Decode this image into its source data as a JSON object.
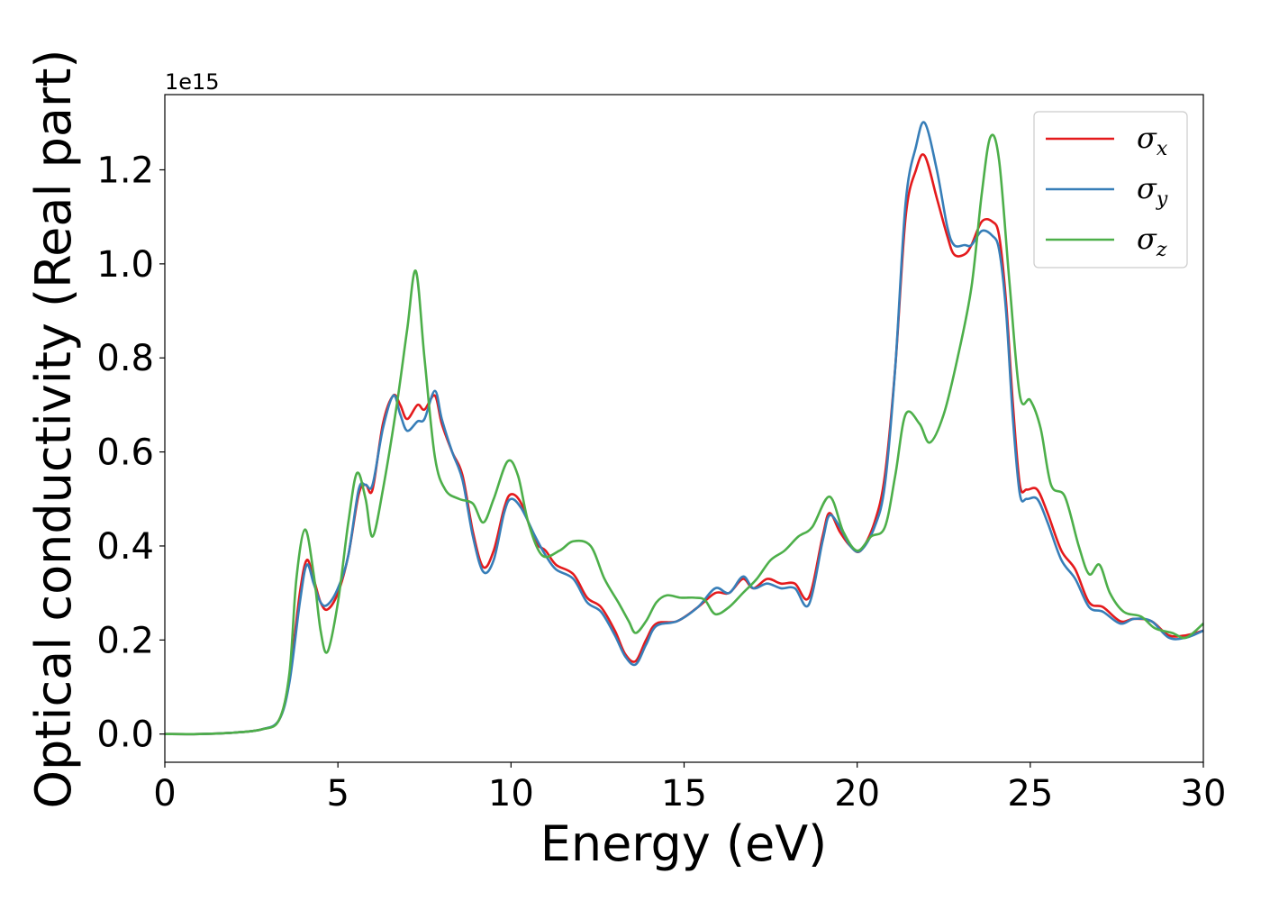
{
  "chart_data": {
    "type": "line",
    "title": "",
    "xlabel": "Energy (eV)",
    "ylabel": "Optical conductivity (Real part)",
    "offset_text": "1e15",
    "xlim": [
      0,
      30
    ],
    "ylim": [
      -0.06,
      1.36
    ],
    "xticks": [
      0,
      5,
      10,
      15,
      20,
      25,
      30
    ],
    "xtick_labels": [
      "0",
      "5",
      "10",
      "15",
      "20",
      "25",
      "30"
    ],
    "yticks": [
      0.0,
      0.2,
      0.4,
      0.6,
      0.8,
      1.0,
      1.2
    ],
    "ytick_labels": [
      "0.0",
      "0.2",
      "0.4",
      "0.6",
      "0.8",
      "1.0",
      "1.2"
    ],
    "grid": false,
    "legend_position": "top-right",
    "series": [
      {
        "name": "σx",
        "legend_symbol": "σ",
        "legend_subscript": "x",
        "color": "#e41a1c",
        "points": [
          [
            0,
            0
          ],
          [
            1,
            0
          ],
          [
            2,
            0.003
          ],
          [
            2.8,
            0.01
          ],
          [
            3.3,
            0.03
          ],
          [
            3.6,
            0.12
          ],
          [
            3.9,
            0.3
          ],
          [
            4.1,
            0.37
          ],
          [
            4.3,
            0.33
          ],
          [
            4.5,
            0.28
          ],
          [
            4.7,
            0.265
          ],
          [
            5.0,
            0.3
          ],
          [
            5.3,
            0.38
          ],
          [
            5.6,
            0.51
          ],
          [
            5.8,
            0.53
          ],
          [
            6.0,
            0.52
          ],
          [
            6.3,
            0.66
          ],
          [
            6.6,
            0.72
          ],
          [
            6.8,
            0.7
          ],
          [
            7.0,
            0.67
          ],
          [
            7.3,
            0.7
          ],
          [
            7.5,
            0.69
          ],
          [
            7.8,
            0.72
          ],
          [
            8.0,
            0.66
          ],
          [
            8.3,
            0.6
          ],
          [
            8.6,
            0.55
          ],
          [
            8.9,
            0.43
          ],
          [
            9.2,
            0.355
          ],
          [
            9.5,
            0.39
          ],
          [
            9.8,
            0.48
          ],
          [
            10.0,
            0.51
          ],
          [
            10.3,
            0.49
          ],
          [
            10.7,
            0.41
          ],
          [
            11.0,
            0.39
          ],
          [
            11.3,
            0.36
          ],
          [
            11.8,
            0.34
          ],
          [
            12.2,
            0.29
          ],
          [
            12.6,
            0.27
          ],
          [
            13.0,
            0.22
          ],
          [
            13.3,
            0.17
          ],
          [
            13.6,
            0.155
          ],
          [
            13.9,
            0.2
          ],
          [
            14.2,
            0.235
          ],
          [
            14.8,
            0.24
          ],
          [
            15.4,
            0.27
          ],
          [
            15.9,
            0.3
          ],
          [
            16.3,
            0.3
          ],
          [
            16.7,
            0.33
          ],
          [
            17.0,
            0.31
          ],
          [
            17.4,
            0.33
          ],
          [
            17.8,
            0.32
          ],
          [
            18.2,
            0.32
          ],
          [
            18.6,
            0.29
          ],
          [
            19.0,
            0.42
          ],
          [
            19.2,
            0.47
          ],
          [
            19.5,
            0.43
          ],
          [
            19.8,
            0.4
          ],
          [
            20.1,
            0.39
          ],
          [
            20.5,
            0.45
          ],
          [
            20.8,
            0.55
          ],
          [
            21.1,
            0.78
          ],
          [
            21.4,
            1.1
          ],
          [
            21.7,
            1.2
          ],
          [
            21.95,
            1.23
          ],
          [
            22.3,
            1.14
          ],
          [
            22.6,
            1.06
          ],
          [
            22.8,
            1.02
          ],
          [
            23.1,
            1.02
          ],
          [
            23.3,
            1.04
          ],
          [
            23.6,
            1.09
          ],
          [
            23.9,
            1.09
          ],
          [
            24.1,
            1.06
          ],
          [
            24.3,
            0.92
          ],
          [
            24.5,
            0.7
          ],
          [
            24.7,
            0.53
          ],
          [
            24.9,
            0.52
          ],
          [
            25.2,
            0.52
          ],
          [
            25.5,
            0.47
          ],
          [
            25.9,
            0.39
          ],
          [
            26.3,
            0.35
          ],
          [
            26.7,
            0.28
          ],
          [
            27.1,
            0.27
          ],
          [
            27.6,
            0.24
          ],
          [
            28.0,
            0.245
          ],
          [
            28.5,
            0.24
          ],
          [
            29.0,
            0.21
          ],
          [
            29.5,
            0.21
          ],
          [
            30.0,
            0.22
          ]
        ]
      },
      {
        "name": "σy",
        "legend_symbol": "σ",
        "legend_subscript": "y",
        "color": "#377eb8",
        "points": [
          [
            0,
            0
          ],
          [
            1,
            0
          ],
          [
            2,
            0.003
          ],
          [
            2.8,
            0.01
          ],
          [
            3.3,
            0.03
          ],
          [
            3.6,
            0.11
          ],
          [
            3.9,
            0.28
          ],
          [
            4.1,
            0.36
          ],
          [
            4.3,
            0.32
          ],
          [
            4.5,
            0.28
          ],
          [
            4.7,
            0.275
          ],
          [
            5.0,
            0.31
          ],
          [
            5.3,
            0.38
          ],
          [
            5.6,
            0.52
          ],
          [
            5.8,
            0.53
          ],
          [
            6.0,
            0.53
          ],
          [
            6.3,
            0.65
          ],
          [
            6.6,
            0.72
          ],
          [
            6.8,
            0.68
          ],
          [
            7.0,
            0.645
          ],
          [
            7.3,
            0.665
          ],
          [
            7.5,
            0.67
          ],
          [
            7.8,
            0.73
          ],
          [
            8.0,
            0.67
          ],
          [
            8.3,
            0.6
          ],
          [
            8.6,
            0.54
          ],
          [
            8.9,
            0.42
          ],
          [
            9.2,
            0.345
          ],
          [
            9.5,
            0.37
          ],
          [
            9.8,
            0.47
          ],
          [
            10.0,
            0.5
          ],
          [
            10.3,
            0.48
          ],
          [
            10.7,
            0.42
          ],
          [
            11.0,
            0.38
          ],
          [
            11.3,
            0.35
          ],
          [
            11.8,
            0.33
          ],
          [
            12.2,
            0.28
          ],
          [
            12.6,
            0.26
          ],
          [
            13.0,
            0.21
          ],
          [
            13.3,
            0.165
          ],
          [
            13.6,
            0.148
          ],
          [
            13.9,
            0.19
          ],
          [
            14.2,
            0.23
          ],
          [
            14.8,
            0.24
          ],
          [
            15.4,
            0.27
          ],
          [
            15.9,
            0.31
          ],
          [
            16.3,
            0.3
          ],
          [
            16.7,
            0.335
          ],
          [
            17.0,
            0.31
          ],
          [
            17.4,
            0.32
          ],
          [
            17.8,
            0.31
          ],
          [
            18.2,
            0.31
          ],
          [
            18.6,
            0.275
          ],
          [
            19.0,
            0.41
          ],
          [
            19.2,
            0.465
          ],
          [
            19.5,
            0.44
          ],
          [
            19.8,
            0.4
          ],
          [
            20.1,
            0.39
          ],
          [
            20.5,
            0.44
          ],
          [
            20.8,
            0.53
          ],
          [
            21.1,
            0.78
          ],
          [
            21.4,
            1.13
          ],
          [
            21.7,
            1.25
          ],
          [
            21.95,
            1.3
          ],
          [
            22.3,
            1.2
          ],
          [
            22.6,
            1.08
          ],
          [
            22.8,
            1.04
          ],
          [
            23.1,
            1.04
          ],
          [
            23.3,
            1.04
          ],
          [
            23.6,
            1.07
          ],
          [
            23.9,
            1.06
          ],
          [
            24.1,
            1.03
          ],
          [
            24.3,
            0.9
          ],
          [
            24.5,
            0.67
          ],
          [
            24.7,
            0.51
          ],
          [
            24.9,
            0.5
          ],
          [
            25.2,
            0.5
          ],
          [
            25.5,
            0.45
          ],
          [
            25.9,
            0.37
          ],
          [
            26.3,
            0.33
          ],
          [
            26.7,
            0.27
          ],
          [
            27.1,
            0.26
          ],
          [
            27.6,
            0.235
          ],
          [
            28.0,
            0.245
          ],
          [
            28.5,
            0.24
          ],
          [
            29.0,
            0.205
          ],
          [
            29.5,
            0.205
          ],
          [
            30.0,
            0.22
          ]
        ]
      },
      {
        "name": "σz",
        "legend_symbol": "σ",
        "legend_subscript": "z",
        "color": "#4daf4a",
        "points": [
          [
            0,
            0
          ],
          [
            1,
            0
          ],
          [
            2,
            0.003
          ],
          [
            2.8,
            0.01
          ],
          [
            3.3,
            0.03
          ],
          [
            3.6,
            0.13
          ],
          [
            3.8,
            0.33
          ],
          [
            4.05,
            0.435
          ],
          [
            4.3,
            0.34
          ],
          [
            4.5,
            0.22
          ],
          [
            4.7,
            0.175
          ],
          [
            5.0,
            0.28
          ],
          [
            5.3,
            0.45
          ],
          [
            5.55,
            0.555
          ],
          [
            5.8,
            0.5
          ],
          [
            6.0,
            0.42
          ],
          [
            6.3,
            0.52
          ],
          [
            6.7,
            0.7
          ],
          [
            7.0,
            0.86
          ],
          [
            7.25,
            0.985
          ],
          [
            7.5,
            0.8
          ],
          [
            7.8,
            0.59
          ],
          [
            8.1,
            0.52
          ],
          [
            8.5,
            0.5
          ],
          [
            8.9,
            0.49
          ],
          [
            9.2,
            0.45
          ],
          [
            9.5,
            0.5
          ],
          [
            9.9,
            0.58
          ],
          [
            10.2,
            0.55
          ],
          [
            10.5,
            0.45
          ],
          [
            10.9,
            0.38
          ],
          [
            11.4,
            0.39
          ],
          [
            11.8,
            0.41
          ],
          [
            12.3,
            0.4
          ],
          [
            12.7,
            0.33
          ],
          [
            13.1,
            0.28
          ],
          [
            13.4,
            0.24
          ],
          [
            13.6,
            0.215
          ],
          [
            13.9,
            0.24
          ],
          [
            14.2,
            0.28
          ],
          [
            14.5,
            0.295
          ],
          [
            14.9,
            0.29
          ],
          [
            15.3,
            0.29
          ],
          [
            15.6,
            0.285
          ],
          [
            15.9,
            0.255
          ],
          [
            16.3,
            0.27
          ],
          [
            16.7,
            0.3
          ],
          [
            17.1,
            0.33
          ],
          [
            17.5,
            0.37
          ],
          [
            17.9,
            0.39
          ],
          [
            18.3,
            0.42
          ],
          [
            18.7,
            0.44
          ],
          [
            19.2,
            0.505
          ],
          [
            19.6,
            0.43
          ],
          [
            20.0,
            0.39
          ],
          [
            20.4,
            0.42
          ],
          [
            20.8,
            0.44
          ],
          [
            21.1,
            0.55
          ],
          [
            21.4,
            0.68
          ],
          [
            21.8,
            0.66
          ],
          [
            22.1,
            0.62
          ],
          [
            22.5,
            0.68
          ],
          [
            22.9,
            0.8
          ],
          [
            23.3,
            0.95
          ],
          [
            23.6,
            1.15
          ],
          [
            23.85,
            1.27
          ],
          [
            24.1,
            1.22
          ],
          [
            24.4,
            0.96
          ],
          [
            24.7,
            0.72
          ],
          [
            25.0,
            0.71
          ],
          [
            25.3,
            0.65
          ],
          [
            25.6,
            0.53
          ],
          [
            26.0,
            0.505
          ],
          [
            26.4,
            0.4
          ],
          [
            26.7,
            0.34
          ],
          [
            27.0,
            0.36
          ],
          [
            27.3,
            0.3
          ],
          [
            27.7,
            0.26
          ],
          [
            28.2,
            0.25
          ],
          [
            28.6,
            0.225
          ],
          [
            29.1,
            0.215
          ],
          [
            29.5,
            0.205
          ],
          [
            30.0,
            0.235
          ]
        ]
      }
    ]
  }
}
